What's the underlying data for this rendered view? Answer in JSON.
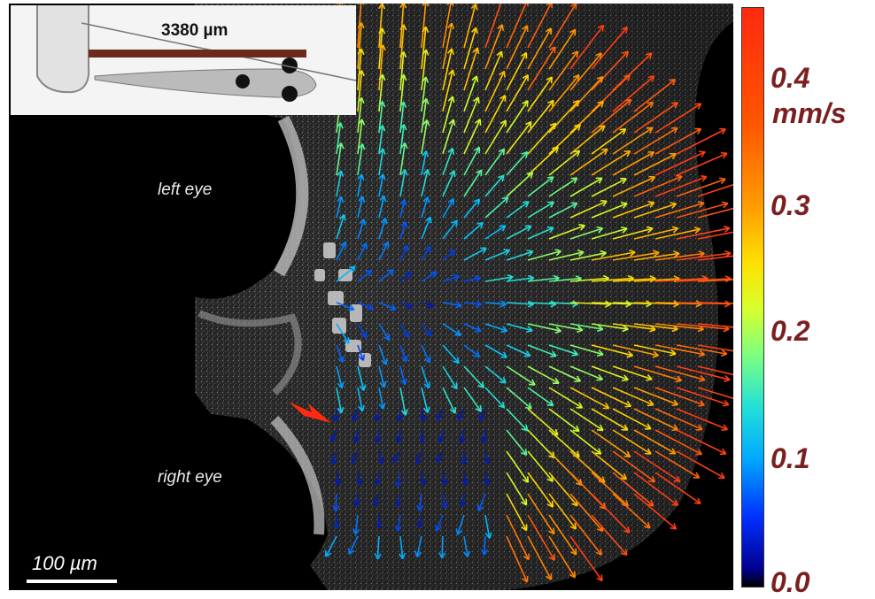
{
  "inset": {
    "label": "3380 µm",
    "bar_color": "#6b2a1c"
  },
  "labels": {
    "left_eye": "left eye",
    "right_eye": "right eye"
  },
  "scale_bar": {
    "label": "100 µm"
  },
  "colorbar": {
    "unit": "mm/s",
    "ticks": [
      "0.4",
      "0.3",
      "0.2",
      "0.1",
      "0.0"
    ],
    "tick_color": "#7a2020"
  },
  "arrow_marker": {
    "color": "#ff2a10",
    "icon": "red-pointer-arrow-icon"
  }
}
